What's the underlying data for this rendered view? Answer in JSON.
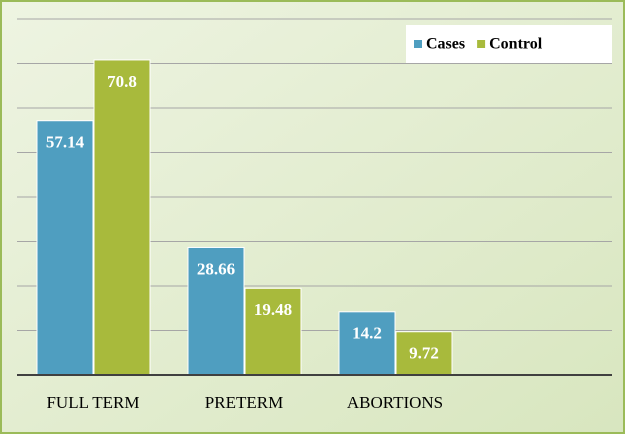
{
  "chart_data": {
    "type": "bar",
    "categories": [
      "FULL TERM",
      "PRETERM",
      "ABORTIONS"
    ],
    "series": [
      {
        "name": "Cases",
        "color": "#4f9ec0",
        "values": [
          57.14,
          28.66,
          14.2
        ]
      },
      {
        "name": "Control",
        "color": "#a8ba3c",
        "values": [
          70.8,
          19.48,
          9.72
        ]
      }
    ],
    "ylim": [
      0,
      80
    ],
    "yticks": [
      0,
      10,
      20,
      30,
      40,
      50,
      60,
      70,
      80
    ],
    "grid": true,
    "legend": "top-right"
  }
}
